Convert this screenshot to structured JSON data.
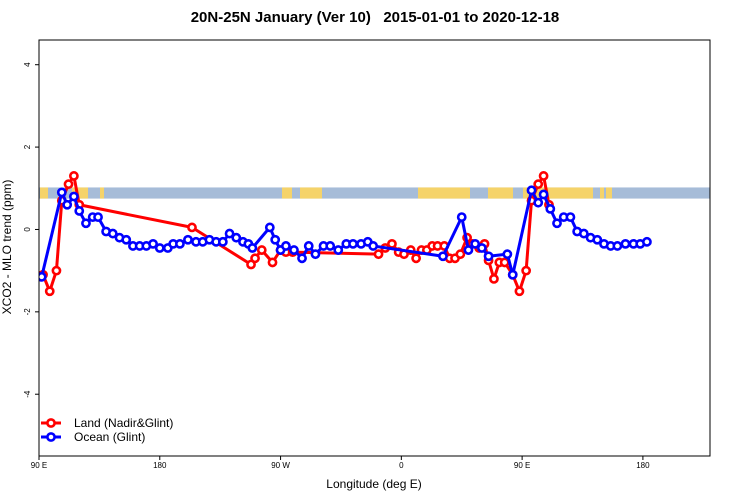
{
  "chart_data": {
    "type": "line",
    "title": "20N-25N January (Ver 10)   2015-01-01 to 2020-12-18",
    "xlabel": "Longitude (deg E)",
    "ylabel": "XCO2 - MLO trend (ppm)",
    "xlim": [
      90,
      590
    ],
    "ylim": [
      -5.5,
      4.6
    ],
    "x_ticks": [
      {
        "value": 90,
        "label": "90 E"
      },
      {
        "value": 180,
        "label": "180"
      },
      {
        "value": 270,
        "label": "90 W"
      },
      {
        "value": 360,
        "label": "0"
      },
      {
        "value": 450,
        "label": "90 E"
      },
      {
        "value": 540,
        "label": "180"
      }
    ],
    "y_ticks": [
      -4,
      -2,
      0,
      2,
      4
    ],
    "legend_position": "bottom-left",
    "land_ocean_strip": {
      "y_range": [
        0.75,
        1.02
      ],
      "land_color": "#f5d36a",
      "ocean_color": "#a6bcd8"
    },
    "series": [
      {
        "name": "Land (Nadir&Glint)",
        "color": "#ff0000",
        "points": [
          [
            93,
            -1.1
          ],
          [
            98,
            -1.5
          ],
          [
            103,
            -1.0
          ],
          [
            107,
            0.7
          ],
          [
            112,
            1.1
          ],
          [
            116,
            1.3
          ],
          [
            120,
            0.6
          ],
          [
            204,
            0.05
          ],
          [
            248,
            -0.85
          ],
          [
            251,
            -0.7
          ],
          [
            256,
            -0.5
          ],
          [
            264,
            -0.8
          ],
          [
            270,
            -0.5
          ],
          [
            274,
            -0.55
          ],
          [
            279,
            -0.55
          ],
          [
            343,
            -0.6
          ],
          [
            348,
            -0.45
          ],
          [
            353,
            -0.35
          ],
          [
            358,
            -0.55
          ],
          [
            362,
            -0.6
          ],
          [
            367,
            -0.5
          ],
          [
            371,
            -0.7
          ],
          [
            375,
            -0.5
          ],
          [
            379,
            -0.5
          ],
          [
            383,
            -0.4
          ],
          [
            387,
            -0.4
          ],
          [
            392,
            -0.4
          ],
          [
            396,
            -0.7
          ],
          [
            400,
            -0.7
          ],
          [
            404,
            -0.6
          ],
          [
            409,
            -0.2
          ],
          [
            413,
            -0.35
          ],
          [
            418,
            -0.45
          ],
          [
            422,
            -0.35
          ],
          [
            425,
            -0.75
          ],
          [
            429,
            -1.2
          ],
          [
            433,
            -0.8
          ],
          [
            437,
            -0.8
          ],
          [
            443,
            -1.1
          ],
          [
            448,
            -1.5
          ],
          [
            453,
            -1.0
          ],
          [
            457,
            0.7
          ],
          [
            462,
            1.1
          ],
          [
            466,
            1.3
          ],
          [
            470,
            0.6
          ]
        ]
      },
      {
        "name": "Ocean (Glint)",
        "color": "#0000ff",
        "points": [
          [
            92,
            -1.15
          ],
          [
            107,
            0.9
          ],
          [
            111,
            0.6
          ],
          [
            116,
            0.8
          ],
          [
            120,
            0.45
          ],
          [
            125,
            0.15
          ],
          [
            130,
            0.3
          ],
          [
            134,
            0.3
          ],
          [
            140,
            -0.05
          ],
          [
            145,
            -0.1
          ],
          [
            150,
            -0.2
          ],
          [
            155,
            -0.25
          ],
          [
            160,
            -0.4
          ],
          [
            165,
            -0.4
          ],
          [
            170,
            -0.4
          ],
          [
            175,
            -0.35
          ],
          [
            180,
            -0.45
          ],
          [
            186,
            -0.45
          ],
          [
            190,
            -0.35
          ],
          [
            195,
            -0.35
          ],
          [
            201,
            -0.25
          ],
          [
            207,
            -0.3
          ],
          [
            212,
            -0.3
          ],
          [
            217,
            -0.25
          ],
          [
            222,
            -0.3
          ],
          [
            227,
            -0.3
          ],
          [
            232,
            -0.1
          ],
          [
            237,
            -0.2
          ],
          [
            242,
            -0.3
          ],
          [
            246,
            -0.35
          ],
          [
            249,
            -0.45
          ],
          [
            262,
            0.05
          ],
          [
            266,
            -0.25
          ],
          [
            270,
            -0.5
          ],
          [
            274,
            -0.4
          ],
          [
            280,
            -0.5
          ],
          [
            286,
            -0.7
          ],
          [
            291,
            -0.4
          ],
          [
            296,
            -0.6
          ],
          [
            302,
            -0.4
          ],
          [
            307,
            -0.4
          ],
          [
            313,
            -0.5
          ],
          [
            319,
            -0.35
          ],
          [
            324,
            -0.35
          ],
          [
            330,
            -0.35
          ],
          [
            335,
            -0.3
          ],
          [
            339,
            -0.4
          ],
          [
            391,
            -0.65
          ],
          [
            405,
            0.3
          ],
          [
            410,
            -0.5
          ],
          [
            415,
            -0.35
          ],
          [
            420,
            -0.45
          ],
          [
            425,
            -0.65
          ],
          [
            439,
            -0.6
          ],
          [
            443,
            -1.1
          ],
          [
            457,
            0.95
          ],
          [
            462,
            0.65
          ],
          [
            466,
            0.85
          ],
          [
            471,
            0.5
          ],
          [
            476,
            0.15
          ],
          [
            481,
            0.3
          ],
          [
            486,
            0.3
          ],
          [
            491,
            -0.05
          ],
          [
            496,
            -0.1
          ],
          [
            501,
            -0.2
          ],
          [
            506,
            -0.25
          ],
          [
            511,
            -0.35
          ],
          [
            516,
            -0.4
          ],
          [
            521,
            -0.4
          ],
          [
            527,
            -0.35
          ],
          [
            533,
            -0.35
          ],
          [
            538,
            -0.35
          ],
          [
            543,
            -0.3
          ]
        ]
      }
    ]
  }
}
